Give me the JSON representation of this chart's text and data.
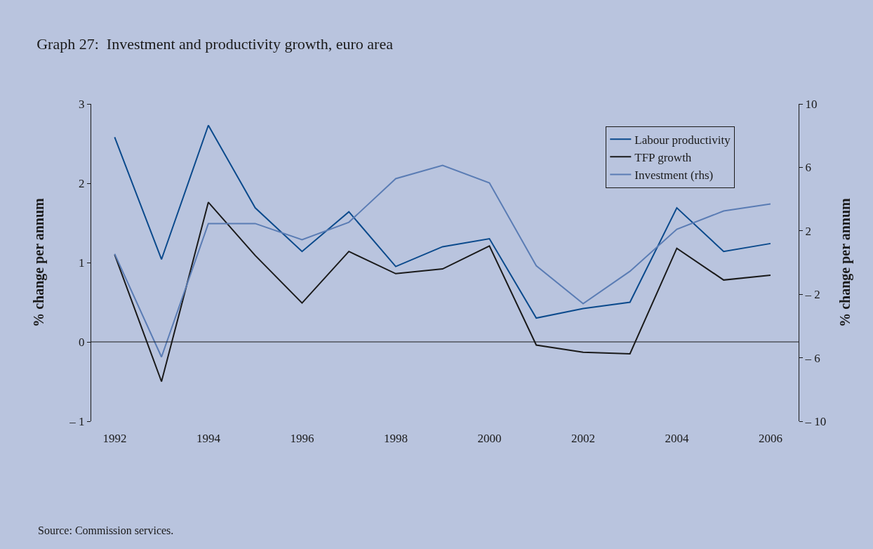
{
  "chart_data": {
    "type": "line",
    "title": "Graph 27:  Investment and productivity growth, euro area",
    "ylabel": "% change per annum",
    "y2label": "% change per annum",
    "x": [
      1992,
      1993,
      1994,
      1995,
      1996,
      1997,
      1998,
      1999,
      2000,
      2001,
      2002,
      2003,
      2004,
      2005,
      2006
    ],
    "series": [
      {
        "name": "Labour productivity",
        "color": "#0b4a8c",
        "values": [
          2.58,
          1.04,
          2.73,
          1.69,
          1.14,
          1.64,
          0.95,
          1.2,
          1.3,
          0.3,
          0.42,
          0.5,
          1.69,
          1.14,
          1.24
        ]
      },
      {
        "name": "TFP growth",
        "color": "#1a1a1a",
        "values": [
          1.1,
          -0.5,
          1.76,
          1.09,
          0.49,
          1.14,
          0.86,
          0.92,
          1.21,
          -0.04,
          -0.13,
          -0.15,
          1.18,
          0.78,
          0.84
        ]
      },
      {
        "name": "Investment (rhs)",
        "color": "#5a7cb4",
        "axis": "y2",
        "values": [
          0.55,
          -5.95,
          2.46,
          2.46,
          1.44,
          2.54,
          5.29,
          6.13,
          5.02,
          -0.2,
          -2.59,
          -0.55,
          2.1,
          3.25,
          3.69
        ]
      }
    ],
    "xlim": [
      1991.5,
      2006.6
    ],
    "xticks": [
      1992,
      1994,
      1996,
      1998,
      2000,
      2002,
      2004,
      2006
    ],
    "ylim": [
      -1,
      3
    ],
    "yticks": [
      {
        "value": -1,
        "label": "– 1"
      },
      0,
      1,
      2,
      3
    ],
    "y2lim": [
      -10,
      10
    ],
    "y2ticks": [
      {
        "value": -10,
        "label": "– 10"
      },
      {
        "value": -6,
        "label": "– 6"
      },
      {
        "value": -2,
        "label": "– 2"
      },
      2,
      6,
      10
    ],
    "ref_lines": [
      {
        "axis": "y",
        "value": 0,
        "color": "#1a1a1a"
      }
    ],
    "legend": "top right",
    "grid": false,
    "annotations": [
      "Source: Commission services."
    ]
  }
}
